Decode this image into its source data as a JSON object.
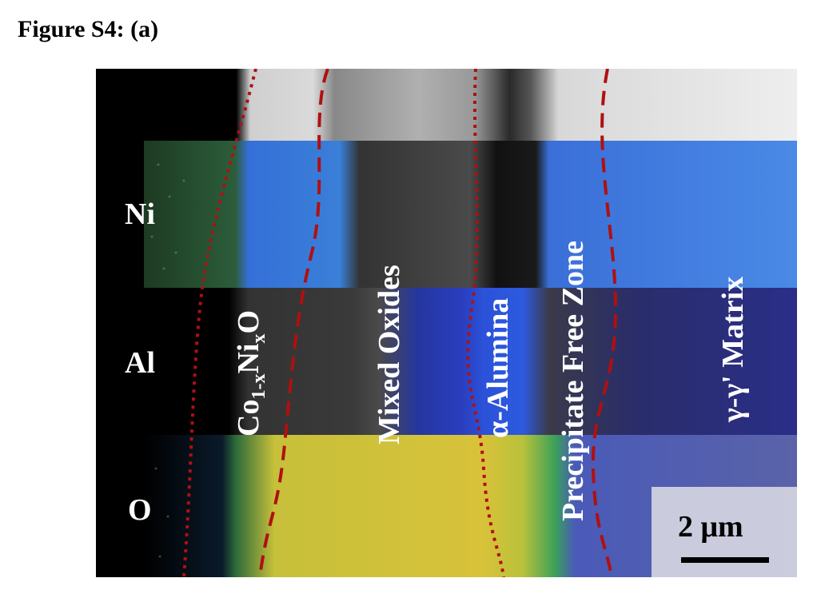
{
  "figure": {
    "title": "Figure S4: (a)"
  },
  "map_rows": [
    {
      "element": "Ni",
      "channel_color": "#3f78e8"
    },
    {
      "element": "Al",
      "channel_color": "#2b2f9a"
    },
    {
      "element": "O",
      "channel_color": "#d8c23a"
    }
  ],
  "layers": {
    "coni_oxide": {
      "base": "Co",
      "sub1": "1-x",
      "mid": "Ni",
      "sub2": "x",
      "end": "O"
    },
    "mixed_oxides": "Mixed Oxides",
    "alumina": "α-Alumina",
    "pfz": "Precipitate Free Zone",
    "matrix": "γ-γ' Matrix"
  },
  "boundary_color": "#b01010",
  "scale_bar": {
    "label": "2 μm"
  }
}
